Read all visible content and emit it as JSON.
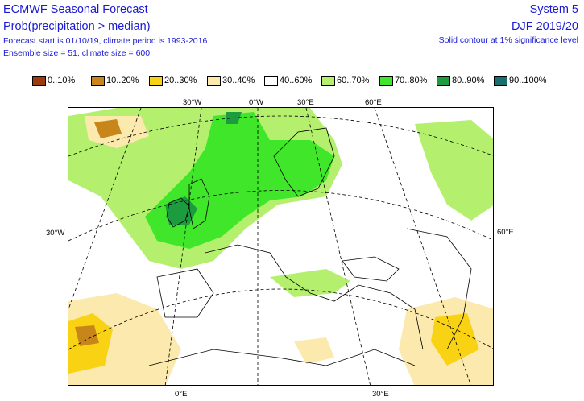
{
  "header": {
    "title": "ECMWF Seasonal Forecast",
    "product": "Prob(precipitation > median)",
    "forecast_start": "Forecast start is 01/10/19, climate period is 1993-2016",
    "ensemble": "Ensemble size = 51, climate size = 600",
    "system": "System 5",
    "season": "DJF 2019/20",
    "note": "Solid contour at 1% significance level"
  },
  "legend": [
    {
      "label": "0..10%",
      "color": "#9c3c0a"
    },
    {
      "label": "10..20%",
      "color": "#c8861a"
    },
    {
      "label": "20..30%",
      "color": "#fad214"
    },
    {
      "label": "30..40%",
      "color": "#fbe9ad"
    },
    {
      "label": "40..60%",
      "color": "#ffffff"
    },
    {
      "label": "60..70%",
      "color": "#b4f06e"
    },
    {
      "label": "70..80%",
      "color": "#3fe62a"
    },
    {
      "label": "80..90%",
      "color": "#1c9c3e"
    },
    {
      "label": "90..100%",
      "color": "#1b6e6e"
    }
  ],
  "axes": {
    "top": [
      "30°W",
      "0°W",
      "30°E",
      "60°E"
    ],
    "left": "30°W",
    "right": "60°E",
    "bottom": [
      "0°E",
      "30°E"
    ]
  }
}
